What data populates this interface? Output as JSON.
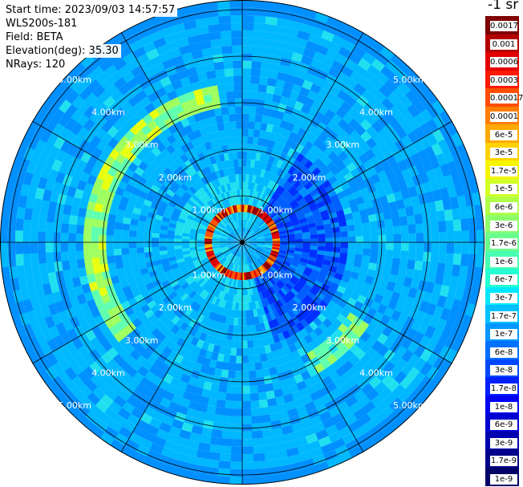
{
  "info": {
    "start_time": "Start time: 2023/09/03 14:57:57",
    "device": "WLS200s-181",
    "field": "Field: BETA",
    "elevation": "Elevation(deg): 35.30",
    "nrays": "NRays: 120"
  },
  "colorbar": {
    "unit_label": "-1 sr",
    "ticks": [
      "0.0017",
      "0.001",
      "0.0006",
      "0.0003",
      "0.00017",
      "0.0001",
      "6e-5",
      "3e-5",
      "1.7e-5",
      "1e-5",
      "6e-6",
      "3e-6",
      "1.7e-6",
      "1e-6",
      "6e-7",
      "3e-7",
      "1.7e-7",
      "1e-7",
      "6e-8",
      "3e-8",
      "1.7e-8",
      "1e-8",
      "6e-9",
      "3e-9",
      "1.7e-9",
      "1e-9"
    ],
    "colors": [
      "#7f0000",
      "#b20000",
      "#e40000",
      "#ff1a00",
      "#ff4e00",
      "#ff7d00",
      "#ffa800",
      "#ffd200",
      "#f7f400",
      "#d2ff25",
      "#b0ff47",
      "#8dff6a",
      "#6aff8d",
      "#47ffb0",
      "#25ffd2",
      "#00e8ff",
      "#00c0ff",
      "#0098ff",
      "#0070ff",
      "#0048ff",
      "#0020ff",
      "#0000f6",
      "#0000d2",
      "#0000ae",
      "#00008a",
      "#000066"
    ]
  },
  "range_labels": [
    "1.00km",
    "2.00km",
    "3.00km",
    "4.00km",
    "5.00km"
  ],
  "chart_data": {
    "type": "heatmap",
    "projection": "polar-ppi",
    "field": "BETA",
    "elevation_deg": 35.3,
    "n_rays": 120,
    "range_rings_km": [
      1,
      2,
      3,
      4,
      5
    ],
    "color_scale": "log",
    "value_range": [
      1e-09,
      0.0017
    ],
    "features": [
      {
        "kind": "ring",
        "range_km": 0.7,
        "level": "0.0017"
      },
      {
        "kind": "arc",
        "range_km": 3.2,
        "level": "3e-6"
      },
      {
        "kind": "background",
        "level": "1e-7"
      }
    ]
  }
}
